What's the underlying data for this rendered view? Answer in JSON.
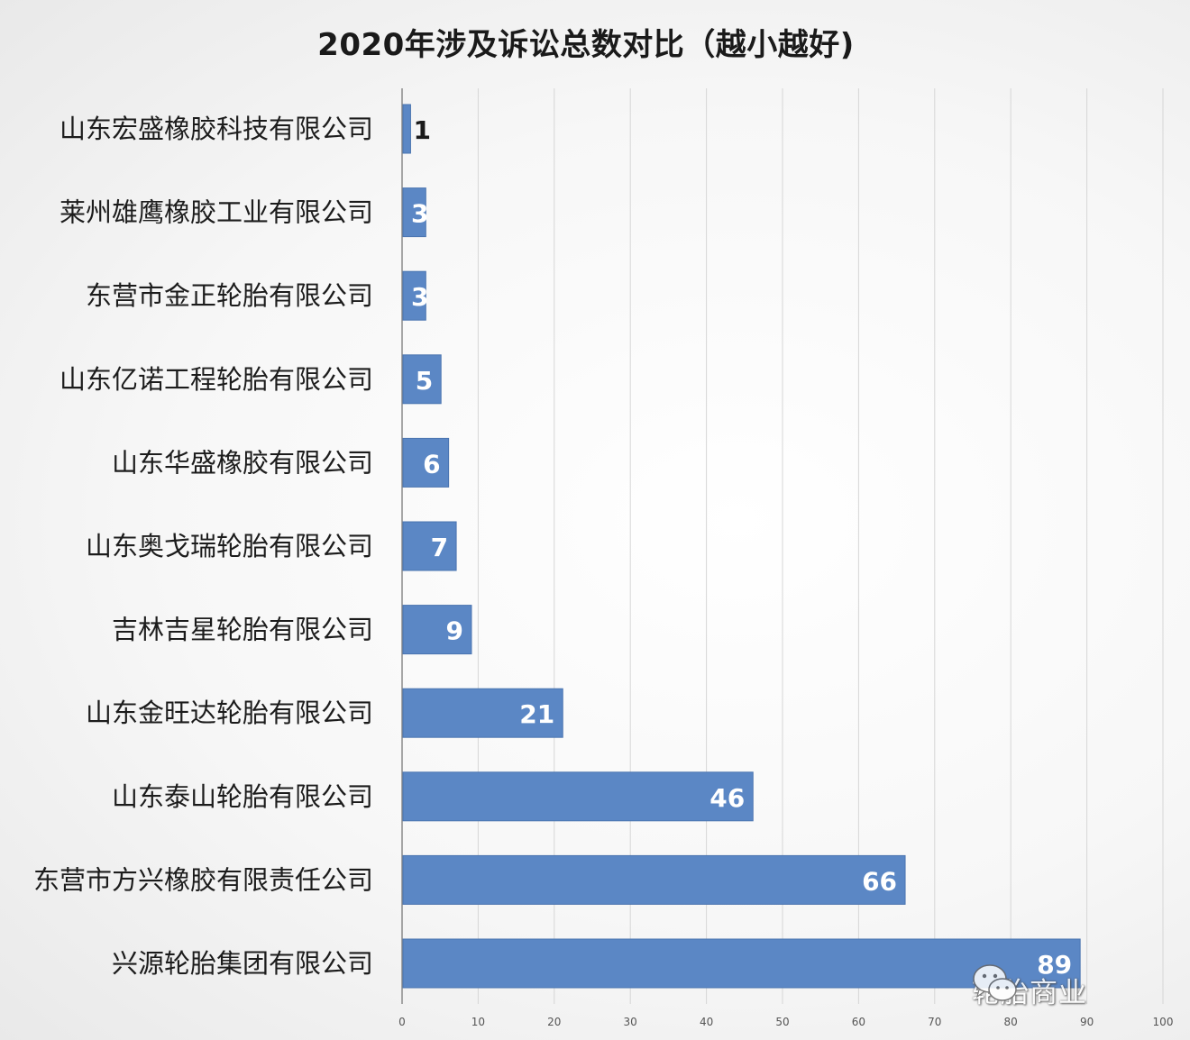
{
  "chart_data": {
    "type": "bar",
    "orientation": "horizontal",
    "title": "2020年涉及诉讼总数对比（越小越好)",
    "categories": [
      "山东宏盛橡胶科技有限公司",
      "莱州雄鹰橡胶工业有限公司",
      "东营市金正轮胎有限公司",
      "山东亿诺工程轮胎有限公司",
      "山东华盛橡胶有限公司",
      "山东奥戈瑞轮胎有限公司",
      "吉林吉星轮胎有限公司",
      "山东金旺达轮胎有限公司",
      "山东泰山轮胎有限公司",
      "东营市方兴橡胶有限责任公司",
      "兴源轮胎集团有限公司"
    ],
    "values": [
      1,
      3,
      3,
      5,
      6,
      7,
      9,
      21,
      46,
      66,
      89
    ],
    "data_labels": [
      "1",
      "3",
      "3",
      "5",
      "6",
      "7",
      "9",
      "21",
      "46",
      "66",
      "89"
    ],
    "xlim": [
      0,
      100
    ],
    "xticks": [
      "0",
      "10",
      "20",
      "30",
      "40",
      "50",
      "60",
      "70",
      "80",
      "90",
      "100"
    ],
    "grid": true,
    "legend": "none",
    "bar_color": "#5b87c5",
    "bar_edge_color": "#4a74b0"
  },
  "watermark": {
    "icon": "wechat-icon",
    "text": "轮胎商业"
  }
}
